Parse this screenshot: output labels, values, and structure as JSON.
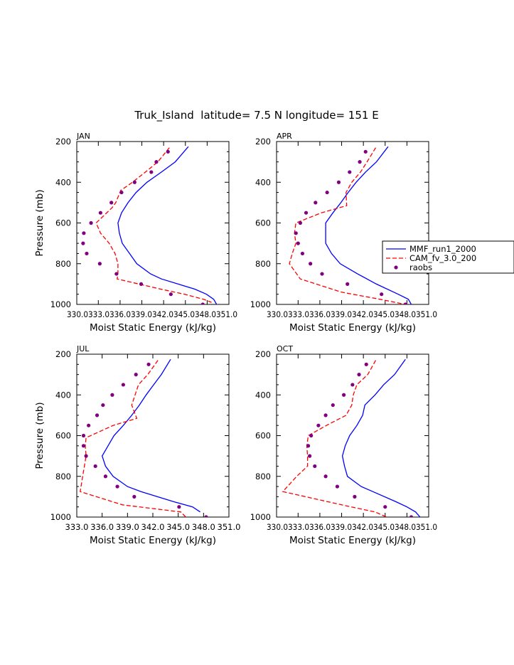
{
  "figure": {
    "title": "Truk_Island  latitude= 7.5 N longitude= 151 E"
  },
  "legend": {
    "entries": [
      "MMF_run1_2000",
      "CAM_fv_3.0_200",
      "raobs"
    ]
  },
  "colors": {
    "mmf": "#0000ff",
    "cam": "#ff0000",
    "raobs": "#800080"
  },
  "chart_data": [
    {
      "type": "line",
      "panel": "JAN",
      "title": "JAN",
      "xlabel": "Moist Static Energy (kJ/kg)",
      "ylabel": "Pressure (mb)",
      "xlim": [
        330.03,
        351.0
      ],
      "ylim": [
        1000,
        200
      ],
      "x_ticks": [
        "330.0",
        "333.0",
        "336.0",
        "339.0",
        "342.0",
        "345.0",
        "348.0",
        "351.0"
      ],
      "x_tick_labels": [
        "330.0333.0336.0339.0342.0345.0348.0351.0"
      ],
      "y_ticks": [
        200,
        400,
        600,
        800,
        1000
      ],
      "series": [
        {
          "name": "MMF_run1_2000",
          "style": "solid",
          "pressure": [
            225,
            300,
            350,
            400,
            450,
            500,
            550,
            600,
            650,
            700,
            750,
            800,
            850,
            875,
            925,
            950,
            975,
            1000
          ],
          "mse": [
            345.4,
            343.6,
            341.7,
            339.7,
            338.2,
            337.1,
            336.2,
            335.7,
            335.9,
            336.3,
            337.3,
            338.3,
            340.2,
            341.7,
            346.3,
            347.9,
            348.9,
            349.3
          ]
        },
        {
          "name": "CAM_fv_3.0_200",
          "style": "dashed",
          "pressure": [
            230,
            300,
            350,
            400,
            440,
            500,
            525,
            600,
            650,
            700,
            750,
            800,
            850,
            875,
            925,
            950,
            975,
            990
          ],
          "mse": [
            342.8,
            341.2,
            339.5,
            337.7,
            336.1,
            335.4,
            334.9,
            332.7,
            333.3,
            334.5,
            335.3,
            335.7,
            335.7,
            335.6,
            341.6,
            344.9,
            347.5,
            348.6
          ]
        },
        {
          "name": "raobs",
          "style": "markers",
          "pressure": [
            250,
            300,
            350,
            400,
            450,
            500,
            550,
            600,
            650,
            700,
            750,
            800,
            850,
            900,
            950,
            1000
          ],
          "mse": [
            342.6,
            341.0,
            340.3,
            338.0,
            336.2,
            334.8,
            333.3,
            332.0,
            331.0,
            330.9,
            331.4,
            333.2,
            335.5,
            338.9,
            343.0,
            347.4
          ]
        }
      ]
    },
    {
      "type": "line",
      "panel": "APR",
      "title": "APR",
      "xlabel": "Moist Static Energy (kJ/kg)",
      "ylabel": "",
      "xlim": [
        330.03,
        351.0
      ],
      "ylim": [
        1000,
        200
      ],
      "x_ticks": [
        "330.0",
        "333.0",
        "336.0",
        "339.0",
        "342.0",
        "345.0",
        "348.0",
        "351.0"
      ],
      "x_tick_labels": [
        "330.0333.0336.0339.0342.0345.0348.0351.0"
      ],
      "y_ticks": [
        200,
        400,
        600,
        800,
        1000
      ],
      "series": [
        {
          "name": "MMF_run1_2000",
          "style": "solid",
          "pressure": [
            225,
            300,
            350,
            400,
            450,
            500,
            550,
            600,
            650,
            700,
            750,
            800,
            850,
            900,
            950,
            975,
            1000
          ],
          "mse": [
            345.4,
            343.8,
            342.3,
            341.0,
            339.9,
            338.9,
            337.8,
            336.8,
            336.8,
            336.8,
            337.6,
            338.8,
            341.2,
            343.8,
            346.8,
            348.2,
            348.6
          ]
        },
        {
          "name": "CAM_fv_3.0_200",
          "style": "dashed",
          "pressure": [
            230,
            300,
            350,
            400,
            450,
            515,
            550,
            600,
            650,
            700,
            750,
            800,
            875,
            940,
            975,
            1000
          ],
          "mse": [
            343.7,
            342.5,
            341.6,
            340.4,
            339.6,
            339.7,
            336.2,
            332.7,
            332.5,
            332.7,
            332.2,
            331.8,
            333.3,
            339.0,
            344.3,
            347.8
          ]
        },
        {
          "name": "raobs",
          "style": "markers",
          "pressure": [
            250,
            300,
            350,
            400,
            450,
            500,
            550,
            600,
            650,
            700,
            750,
            800,
            850,
            900,
            950,
            1000
          ],
          "mse": [
            342.3,
            341.5,
            340.1,
            338.6,
            337.0,
            335.4,
            334.1,
            333.3,
            332.7,
            333.0,
            333.6,
            334.7,
            336.3,
            339.8,
            344.5,
            347.8
          ]
        }
      ]
    },
    {
      "type": "line",
      "panel": "JUL",
      "title": "JUL",
      "xlabel": "Moist Static Energy (kJ/kg)",
      "ylabel": "Pressure (mb)",
      "xlim": [
        333.0,
        351.0
      ],
      "ylim": [
        1000,
        200
      ],
      "x_ticks": [
        "333.0",
        "336.0",
        "339.0",
        "342.0",
        "345.0",
        "348.0",
        "351.0"
      ],
      "x_tick_labels": [
        "333.0",
        "336.0",
        "339.0",
        "342.0",
        "345.0",
        "348.0",
        "351.0"
      ],
      "y_ticks": [
        200,
        400,
        600,
        800,
        1000
      ],
      "series": [
        {
          "name": "MMF_run1_2000",
          "style": "solid",
          "pressure": [
            225,
            300,
            350,
            400,
            450,
            500,
            550,
            600,
            650,
            700,
            750,
            800,
            850,
            875,
            925,
            950,
            975
          ],
          "mse": [
            344.1,
            343.0,
            342.1,
            341.2,
            340.4,
            339.5,
            338.5,
            337.4,
            336.7,
            336.0,
            336.4,
            337.3,
            339.0,
            340.6,
            344.5,
            346.7,
            347.6
          ]
        },
        {
          "name": "CAM_fv_3.0_200",
          "style": "dashed",
          "pressure": [
            230,
            300,
            350,
            400,
            450,
            515,
            550,
            610,
            650,
            700,
            750,
            800,
            875,
            940,
            975,
            1000
          ],
          "mse": [
            342.6,
            341.4,
            340.3,
            339.9,
            339.5,
            340.1,
            337.3,
            334.1,
            334.0,
            334.1,
            333.9,
            333.7,
            333.4,
            338.4,
            345.3,
            345.9
          ]
        },
        {
          "name": "raobs",
          "style": "markers",
          "pressure": [
            250,
            300,
            350,
            400,
            450,
            500,
            550,
            600,
            650,
            700,
            750,
            800,
            850,
            900,
            950,
            1000
          ],
          "mse": [
            341.5,
            340.0,
            338.5,
            337.2,
            336.1,
            335.4,
            334.4,
            333.8,
            333.8,
            334.1,
            335.2,
            336.4,
            337.8,
            339.8,
            345.1,
            348.3
          ]
        }
      ]
    },
    {
      "type": "line",
      "panel": "OCT",
      "title": "OCT",
      "xlabel": "Moist Static Energy (kJ/kg)",
      "ylabel": "",
      "xlim": [
        330.03,
        351.0
      ],
      "ylim": [
        1000,
        200
      ],
      "x_ticks": [
        "330.0",
        "333.0",
        "336.0",
        "339.0",
        "342.0",
        "345.0",
        "348.0",
        "351.0"
      ],
      "x_tick_labels": [
        "330.0333.0336.0339.0342.0345.0348.0351.0"
      ],
      "y_ticks": [
        200,
        400,
        600,
        800,
        1000
      ],
      "series": [
        {
          "name": "MMF_run1_2000",
          "style": "solid",
          "pressure": [
            225,
            300,
            350,
            400,
            450,
            500,
            550,
            600,
            650,
            700,
            750,
            800,
            850,
            875,
            925,
            950,
            975,
            1000
          ],
          "mse": [
            347.8,
            346.3,
            344.8,
            343.6,
            342.2,
            341.9,
            341.1,
            340.1,
            339.5,
            339.1,
            339.4,
            339.8,
            341.7,
            343.3,
            346.5,
            348.0,
            349.2,
            349.8
          ]
        },
        {
          "name": "CAM_fv_3.0_200",
          "style": "dashed",
          "pressure": [
            230,
            300,
            350,
            400,
            450,
            500,
            550,
            600,
            650,
            700,
            750,
            800,
            875,
            940,
            975,
            1000
          ],
          "mse": [
            343.7,
            342.6,
            341.1,
            340.6,
            340.4,
            339.6,
            336.9,
            334.4,
            334.2,
            334.3,
            334.3,
            332.8,
            330.9,
            339.0,
            343.6,
            345.2
          ]
        },
        {
          "name": "raobs",
          "style": "markers",
          "pressure": [
            250,
            300,
            350,
            400,
            450,
            500,
            550,
            600,
            650,
            700,
            750,
            800,
            850,
            900,
            950,
            1000
          ],
          "mse": [
            342.4,
            341.4,
            340.5,
            339.3,
            337.8,
            336.8,
            335.8,
            334.8,
            334.4,
            334.6,
            335.3,
            336.8,
            338.4,
            340.8,
            345.0,
            348.6
          ]
        }
      ]
    }
  ]
}
